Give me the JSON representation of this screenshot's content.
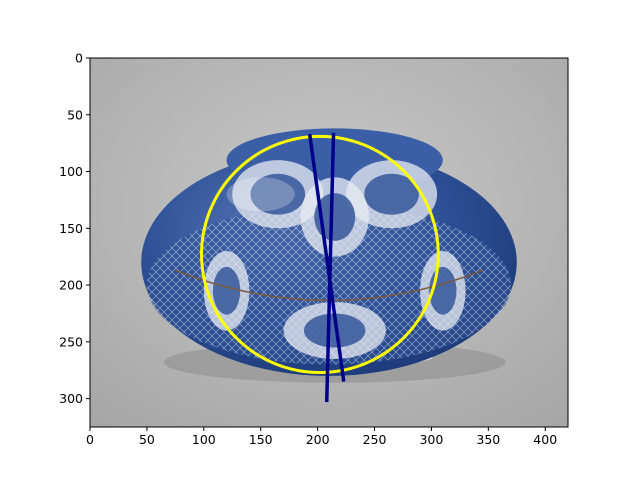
{
  "chart_data": {
    "type": "image",
    "image_description": "blue-and-white porcelain covered box on gray studio background",
    "xlim": [
      0,
      420
    ],
    "ylim": [
      325,
      0
    ],
    "x_ticks": [
      0,
      50,
      100,
      150,
      200,
      250,
      300,
      350,
      400
    ],
    "y_ticks": [
      0,
      50,
      100,
      150,
      200,
      250,
      300
    ],
    "x_tick_labels": [
      "0",
      "50",
      "100",
      "150",
      "200",
      "250",
      "300",
      "350",
      "400"
    ],
    "y_tick_labels": [
      "0",
      "50",
      "100",
      "150",
      "200",
      "250",
      "300"
    ],
    "overlays": {
      "circle": {
        "cx": 202,
        "cy": 173,
        "r": 104,
        "color": "#ffff00"
      },
      "lines": [
        {
          "x": [
            193,
            223
          ],
          "y": [
            67,
            285
          ],
          "color": "#00008b"
        },
        {
          "x": [
            214,
            208
          ],
          "y": [
            66,
            303
          ],
          "color": "#00008b"
        }
      ]
    },
    "colors": {
      "background": "#bdbdbd",
      "porcelain_blue": "#2c4f95",
      "porcelain_white": "#e8ecf3"
    }
  }
}
